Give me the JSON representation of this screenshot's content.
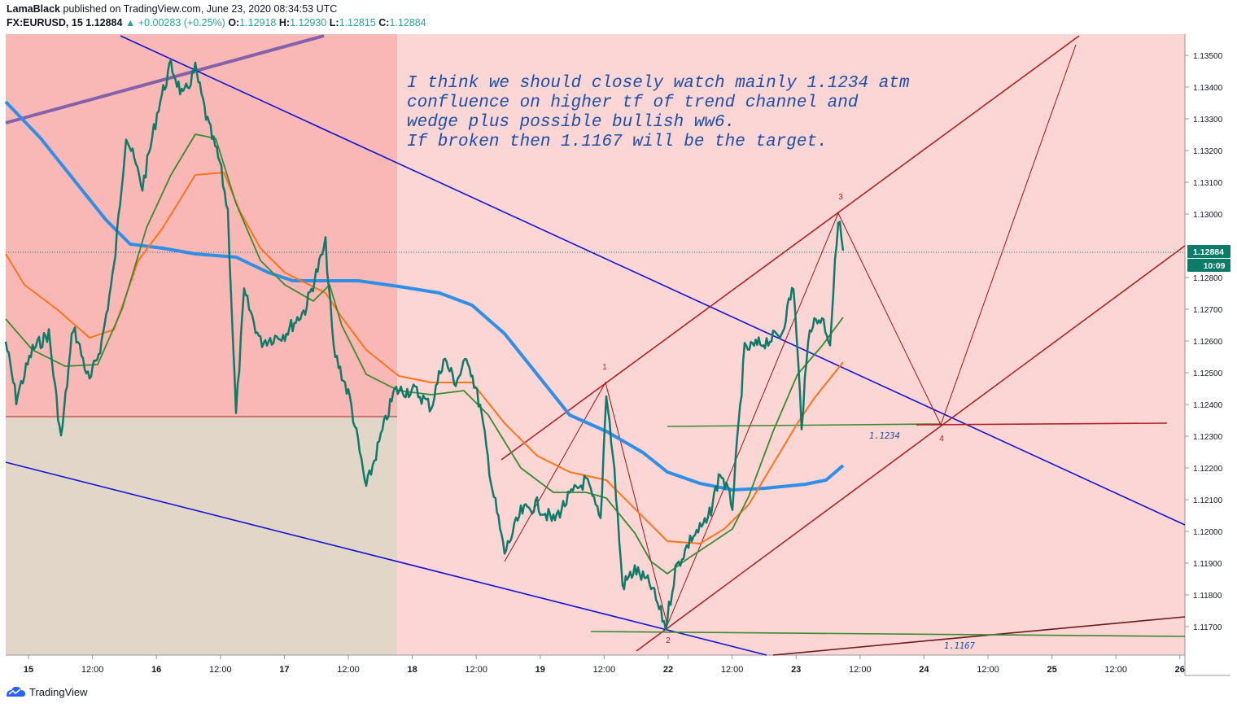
{
  "header": {
    "author": "LamaBlack",
    "published_text": "published on TradingView.com, June 23, 2020 08:34:53 UTC",
    "symbol": "FX:EURUSD, 15",
    "last": "1.12884",
    "up_arrow": "▲",
    "change": "+0.00283 (+0.25%)",
    "o_label": "O:",
    "o_value": "1.12918",
    "h_label": "H:",
    "h_value": "1.12930",
    "l_label": "L:",
    "l_value": "1.12815",
    "c_label": "C:",
    "c_value": "1.12884"
  },
  "footer": {
    "brand": "TradingView",
    "logo_icon": "tradingview-logo-icon"
  },
  "chart_data": {
    "type": "line",
    "symbol": "FX:EURUSD",
    "interval": "15",
    "x_ticks": [
      "15",
      "12:00",
      "16",
      "12:00",
      "17",
      "12:00",
      "18",
      "12:00",
      "19",
      "12:00",
      "22",
      "12:00",
      "23",
      "12:00",
      "24",
      "12:00",
      "25",
      "12:00",
      "26"
    ],
    "y_ticks": [
      "1.13500",
      "1.13400",
      "1.13300",
      "1.13200",
      "1.13100",
      "1.13000",
      "1.12800",
      "1.12700",
      "1.12600",
      "1.12500",
      "1.12400",
      "1.12300",
      "1.12200",
      "1.12100",
      "1.12000",
      "1.11900",
      "1.11800",
      "1.11700"
    ],
    "ylim": [
      1.1164,
      1.1355
    ],
    "price_tag": "1.12884",
    "countdown_tag": "10:09",
    "annotation_lines": [
      "I think we should closely watch mainly 1.1234 atm",
      "confluence on higher tf of trend channel and",
      "wedge plus possible bullish ww6.",
      "If broken then 1.1167 will be the target."
    ],
    "level_labels": [
      "1.1234",
      "1.1167"
    ],
    "levels": [
      1.1234,
      1.1167
    ],
    "wave_labels": [
      "1",
      "2",
      "3",
      "4"
    ],
    "colors": {
      "price": "#0b7b6a",
      "ma_blue": "#2e8fe8",
      "ma_orange": "#ff7417",
      "ma_green": "#3a8a2f",
      "channel_blue": "#1414d4",
      "channel_red": "#b22222",
      "purple": "#8462ab",
      "zone_red": "#f9b8b5",
      "zone_pink": "#fcd5d5",
      "zone_beige": "#e2d6c8",
      "annotation": "#1d4fa8"
    }
  }
}
